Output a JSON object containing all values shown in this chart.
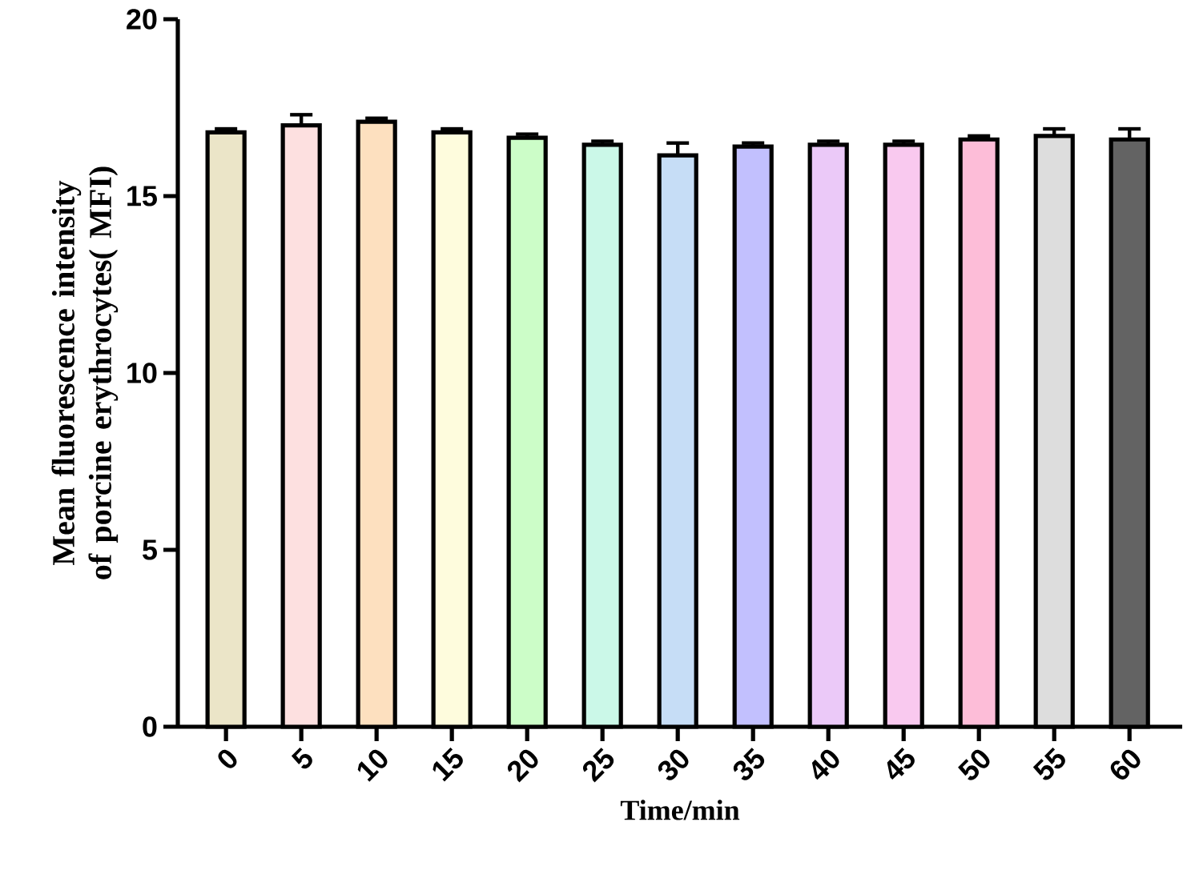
{
  "chart_data": {
    "type": "bar",
    "xlabel": "Time/min",
    "ylabel": "Mean fluorescence intensity of porcine erythrocytes( MFI)",
    "categories": [
      "0",
      "5",
      "10",
      "15",
      "20",
      "25",
      "30",
      "35",
      "40",
      "45",
      "50",
      "55",
      "60"
    ],
    "values": [
      16.8,
      17.0,
      17.1,
      16.8,
      16.65,
      16.45,
      16.15,
      16.4,
      16.45,
      16.45,
      16.6,
      16.7,
      16.6
    ],
    "errors": [
      0.1,
      0.3,
      0.1,
      0.1,
      0.1,
      0.1,
      0.35,
      0.1,
      0.1,
      0.1,
      0.1,
      0.2,
      0.3
    ],
    "colors": [
      "#ebe5c8",
      "#fde0e0",
      "#fde0bf",
      "#fefcdd",
      "#ccfdc8",
      "#cbf8e8",
      "#c6ddf6",
      "#c2c0fe",
      "#ebc9f8",
      "#f9c9ef",
      "#fdbdd8",
      "#dddddd",
      "#636363"
    ],
    "ylim": [
      0,
      20
    ],
    "yticks": [
      0,
      5,
      10,
      15,
      20
    ],
    "grid": false
  }
}
